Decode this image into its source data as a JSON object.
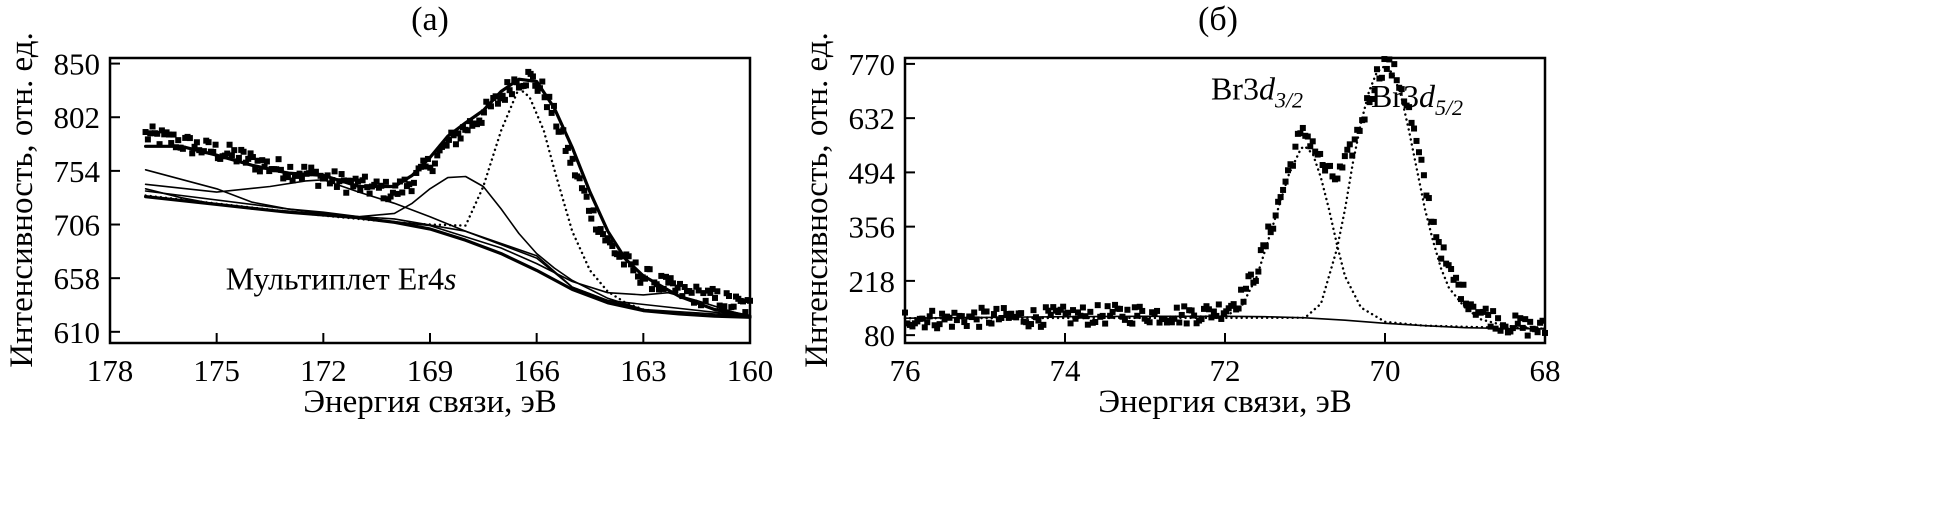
{
  "chart_data": [
    {
      "type": "scatter",
      "title": "(а)",
      "xlabel": "Энергия связи, эВ",
      "ylabel": "Интенсивность, отн. ед.",
      "xlim": [
        178,
        160
      ],
      "ylim": [
        600,
        855
      ],
      "x_reversed": true,
      "xticks": [
        178,
        175,
        172,
        169,
        166,
        163,
        160
      ],
      "yticks": [
        610,
        658,
        706,
        754,
        802,
        850
      ],
      "grid": false,
      "annotations": [
        {
          "text": "Мультиплет Er4",
          "italic_suffix": "s",
          "x": 171.5,
          "y": 648
        }
      ],
      "series": [
        {
          "role": "measured",
          "style": "markers",
          "points": [
            [
              177,
              786
            ],
            [
              176.3,
              782
            ],
            [
              175.5,
              775
            ],
            [
              174.5,
              768
            ],
            [
              173.5,
              758
            ],
            [
              172.5,
              752
            ],
            [
              171.5,
              744
            ],
            [
              170.5,
              738
            ],
            [
              170,
              735
            ],
            [
              169.5,
              745
            ],
            [
              169,
              760
            ],
            [
              168.5,
              778
            ],
            [
              168,
              792
            ],
            [
              167.5,
              805
            ],
            [
              167,
              820
            ],
            [
              166.6,
              835
            ],
            [
              166.2,
              838
            ],
            [
              165.8,
              825
            ],
            [
              165.4,
              795
            ],
            [
              165,
              760
            ],
            [
              164.5,
              720
            ],
            [
              164,
              690
            ],
            [
              163.5,
              672
            ],
            [
              163,
              660
            ],
            [
              162,
              646
            ],
            [
              161,
              640
            ],
            [
              160,
              632
            ]
          ]
        },
        {
          "role": "envelope",
          "style": "thick-line",
          "points": [
            [
              177,
              776
            ],
            [
              176,
              776
            ],
            [
              175,
              768
            ],
            [
              174,
              759
            ],
            [
              173,
              752
            ],
            [
              172,
              750
            ],
            [
              171,
              740
            ],
            [
              170,
              740
            ],
            [
              169.5,
              750
            ],
            [
              169,
              766
            ],
            [
              168.5,
              785
            ],
            [
              168,
              797
            ],
            [
              167.5,
              808
            ],
            [
              167,
              825
            ],
            [
              166.5,
              836
            ],
            [
              166,
              834
            ],
            [
              165.5,
              810
            ],
            [
              165,
              775
            ],
            [
              164.5,
              735
            ],
            [
              164,
              700
            ],
            [
              163.5,
              675
            ],
            [
              163,
              660
            ],
            [
              162,
              642
            ],
            [
              161,
              630
            ],
            [
              160,
              624
            ]
          ]
        },
        {
          "role": "background",
          "style": "thick-line",
          "points": [
            [
              177,
              731
            ],
            [
              175,
              724
            ],
            [
              173,
              717
            ],
            [
              171,
              712
            ],
            [
              170,
              708
            ],
            [
              169,
              702
            ],
            [
              168,
              692
            ],
            [
              167,
              680
            ],
            [
              166,
              665
            ],
            [
              165,
              648
            ],
            [
              164,
              636
            ],
            [
              163,
              629
            ],
            [
              162,
              626
            ],
            [
              161,
              624
            ],
            [
              160,
              623
            ]
          ]
        },
        {
          "role": "component",
          "style": "dotted-line",
          "points": [
            [
              177,
              732
            ],
            [
              172,
              714
            ],
            [
              170,
              708
            ],
            [
              169,
              706
            ],
            [
              168,
              705
            ],
            [
              167.5,
              740
            ],
            [
              167,
              790
            ],
            [
              166.5,
              828
            ],
            [
              166.2,
              820
            ],
            [
              165.8,
              790
            ],
            [
              165.5,
              755
            ],
            [
              165,
              700
            ],
            [
              164.5,
              665
            ],
            [
              164,
              646
            ],
            [
              163.5,
              636
            ],
            [
              163,
              630
            ],
            [
              162,
              626
            ],
            [
              160,
              623
            ]
          ]
        },
        {
          "role": "component",
          "style": "thin-line",
          "points": [
            [
              177,
              736
            ],
            [
              172,
              716
            ],
            [
              171,
              713
            ],
            [
              170,
              716
            ],
            [
              169.5,
              725
            ],
            [
              169,
              738
            ],
            [
              168.5,
              748
            ],
            [
              168,
              749
            ],
            [
              167.5,
              740
            ],
            [
              167,
              720
            ],
            [
              166.5,
              698
            ],
            [
              166,
              680
            ],
            [
              165.5,
              667
            ],
            [
              165,
              656
            ],
            [
              164,
              640
            ],
            [
              163,
              630
            ],
            [
              162,
              626
            ],
            [
              160,
              623
            ]
          ]
        },
        {
          "role": "component",
          "style": "thin-line",
          "points": [
            [
              177,
              755
            ],
            [
              175,
              738
            ],
            [
              174,
              726
            ],
            [
              173,
              720
            ],
            [
              172,
              717
            ],
            [
              171,
              713
            ],
            [
              170,
              711
            ],
            [
              168,
              700
            ],
            [
              166,
              678
            ],
            [
              165,
              650
            ],
            [
              164,
              638
            ],
            [
              163,
              630
            ],
            [
              160,
              624
            ]
          ]
        },
        {
          "role": "component",
          "style": "thin-line",
          "points": [
            [
              177,
              742
            ],
            [
              175,
              735
            ],
            [
              173.5,
              740
            ],
            [
              172.5,
              745
            ],
            [
              172,
              746
            ],
            [
              171,
              735
            ],
            [
              170,
              725
            ],
            [
              169,
              713
            ],
            [
              168,
              700
            ],
            [
              166,
              676
            ],
            [
              165,
              650
            ],
            [
              164,
              638
            ],
            [
              160,
              624
            ]
          ]
        },
        {
          "role": "component",
          "style": "thin-line",
          "points": [
            [
              177,
              738
            ],
            [
              176,
              730
            ],
            [
              175,
              724
            ],
            [
              174,
              720
            ],
            [
              173,
              718
            ],
            [
              171,
              712
            ],
            [
              169,
              705
            ],
            [
              167,
              685
            ],
            [
              166,
              671
            ],
            [
              165,
              655
            ],
            [
              164,
              645
            ],
            [
              163,
              643
            ],
            [
              162.3,
              645
            ],
            [
              161.5,
              638
            ],
            [
              160.5,
              628
            ],
            [
              160,
              624
            ]
          ]
        }
      ]
    },
    {
      "type": "scatter",
      "title": "(б)",
      "xlabel": "Энергия связи, эВ",
      "ylabel": "Интенсивность, отн. ед.",
      "xlim": [
        76,
        68
      ],
      "ylim": [
        60,
        785
      ],
      "x_reversed": true,
      "xticks": [
        76,
        74,
        72,
        70,
        68
      ],
      "yticks": [
        80,
        218,
        356,
        494,
        632,
        770
      ],
      "grid": false,
      "annotations": [
        {
          "text": "Br3",
          "italic": "d",
          "subscript": "3/2",
          "x": 71.6,
          "y": 680
        },
        {
          "text": "Br3",
          "italic": "d",
          "subscript": "5/2",
          "x": 69.6,
          "y": 660
        }
      ],
      "series": [
        {
          "role": "measured",
          "style": "markers",
          "points": [
            [
              76,
              124
            ],
            [
              75.5,
              120
            ],
            [
              75,
              125
            ],
            [
              74.5,
              125
            ],
            [
              74,
              128
            ],
            [
              73.5,
              132
            ],
            [
              73,
              134
            ],
            [
              72.5,
              132
            ],
            [
              72.2,
              138
            ],
            [
              72,
              148
            ],
            [
              71.8,
              175
            ],
            [
              71.6,
              245
            ],
            [
              71.4,
              370
            ],
            [
              71.2,
              500
            ],
            [
              71.1,
              570
            ],
            [
              71,
              595
            ],
            [
              70.9,
              570
            ],
            [
              70.8,
              520
            ],
            [
              70.7,
              488
            ],
            [
              70.6,
              480
            ],
            [
              70.5,
              515
            ],
            [
              70.4,
              560
            ],
            [
              70.3,
              620
            ],
            [
              70.2,
              680
            ],
            [
              70.1,
              740
            ],
            [
              70,
              772
            ],
            [
              69.9,
              752
            ],
            [
              69.8,
              715
            ],
            [
              69.7,
              650
            ],
            [
              69.6,
              560
            ],
            [
              69.5,
              460
            ],
            [
              69.4,
              370
            ],
            [
              69.3,
              300
            ],
            [
              69.2,
              240
            ],
            [
              69,
              180
            ],
            [
              68.8,
              138
            ],
            [
              68.5,
              110
            ],
            [
              68.2,
              100
            ],
            [
              68,
              95
            ]
          ]
        },
        {
          "role": "background",
          "style": "thin-line",
          "points": [
            [
              76,
              123
            ],
            [
              75,
              125
            ],
            [
              74,
              127
            ],
            [
              73,
              128
            ],
            [
              72,
              128
            ],
            [
              71.5,
              127
            ],
            [
              71,
              124
            ],
            [
              70.5,
              118
            ],
            [
              70,
              110
            ],
            [
              69.5,
              104
            ],
            [
              69,
              99
            ],
            [
              68.5,
              97
            ],
            [
              68,
              96
            ]
          ]
        },
        {
          "role": "component",
          "style": "dotted-line",
          "points": [
            [
              76,
              123
            ],
            [
              72,
              128
            ],
            [
              71.8,
              150
            ],
            [
              71.6,
              230
            ],
            [
              71.4,
              360
            ],
            [
              71.2,
              490
            ],
            [
              71.05,
              555
            ],
            [
              71,
              560
            ],
            [
              70.9,
              540
            ],
            [
              70.8,
              480
            ],
            [
              70.7,
              400
            ],
            [
              70.6,
              310
            ],
            [
              70.5,
              230
            ],
            [
              70.3,
              150
            ],
            [
              70,
              114
            ],
            [
              69.5,
              104
            ],
            [
              68,
              96
            ]
          ]
        },
        {
          "role": "component",
          "style": "dotted-line",
          "points": [
            [
              76,
              123
            ],
            [
              71,
              124
            ],
            [
              70.8,
              160
            ],
            [
              70.6,
              300
            ],
            [
              70.5,
              400
            ],
            [
              70.4,
              520
            ],
            [
              70.3,
              620
            ],
            [
              70.2,
              700
            ],
            [
              70.1,
              750
            ],
            [
              70,
              765
            ],
            [
              69.9,
              745
            ],
            [
              69.8,
              690
            ],
            [
              69.7,
              600
            ],
            [
              69.6,
              500
            ],
            [
              69.5,
              400
            ],
            [
              69.4,
              320
            ],
            [
              69.3,
              250
            ],
            [
              69.2,
              200
            ],
            [
              69,
              150
            ],
            [
              68.8,
              120
            ],
            [
              68.5,
              104
            ],
            [
              68,
              96
            ]
          ]
        }
      ]
    }
  ]
}
